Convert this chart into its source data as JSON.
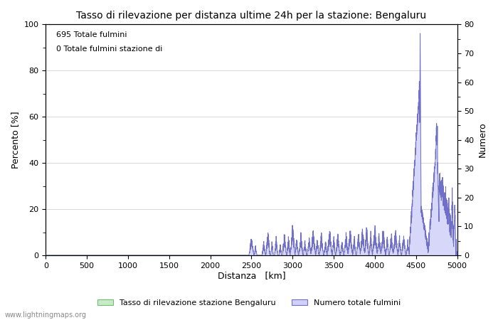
{
  "title": "Tasso di rilevazione per distanza ultime 24h per la stazione: Bengaluru",
  "xlabel": "Distanza   [km]",
  "ylabel_left": "Percento [%]",
  "ylabel_right": "Numero",
  "xlim": [
    0,
    5000
  ],
  "ylim_left": [
    0,
    100
  ],
  "ylim_right": [
    0,
    80
  ],
  "yticks_left": [
    0,
    20,
    40,
    60,
    80,
    100
  ],
  "yticks_right": [
    0,
    10,
    20,
    30,
    40,
    50,
    60,
    70,
    80
  ],
  "xticks": [
    0,
    500,
    1000,
    1500,
    2000,
    2500,
    3000,
    3500,
    4000,
    4500,
    5000
  ],
  "annotation1": "695 Totale fulmini",
  "annotation2": "0 Totale fulmini stazione di",
  "legend_label_green": "Tasso di rilevazione stazione Bengaluru",
  "legend_label_blue": "Numero totale fulmini",
  "watermark": "www.lightningmaps.org",
  "green_fill_color": "#c8eac8",
  "blue_fill_color": "#d0d0f8",
  "blue_line_color": "#7070c8",
  "green_line_color": "#70c070",
  "background_color": "#ffffff",
  "grid_color": "#d8d8d8"
}
